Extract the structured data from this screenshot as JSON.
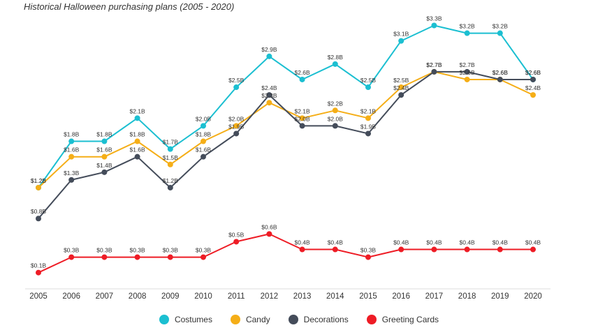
{
  "chart_data": {
    "type": "line",
    "title": "Historical Halloween purchasing plans (2005 - 2020)",
    "x": [
      "2005",
      "2006",
      "2007",
      "2008",
      "2009",
      "2010",
      "2011",
      "2012",
      "2013",
      "2014",
      "2015",
      "2016",
      "2017",
      "2018",
      "2019",
      "2020"
    ],
    "value_prefix": "$",
    "value_suffix": "B",
    "ylim": [
      0,
      3.4
    ],
    "grid": false,
    "legend_position": "bottom",
    "series": [
      {
        "name": "Costumes",
        "color": "#1bbfd1",
        "values": [
          1.2,
          1.8,
          1.8,
          2.1,
          1.7,
          2.0,
          2.5,
          2.9,
          2.6,
          2.8,
          2.5,
          3.1,
          3.3,
          3.2,
          3.2,
          2.6
        ]
      },
      {
        "name": "Candy",
        "color": "#f5ae17",
        "values": [
          1.2,
          1.6,
          1.6,
          1.8,
          1.5,
          1.8,
          2.0,
          2.3,
          2.1,
          2.2,
          2.1,
          2.5,
          2.7,
          2.6,
          2.6,
          2.4
        ]
      },
      {
        "name": "Decorations",
        "color": "#444c5a",
        "values": [
          0.8,
          1.3,
          1.4,
          1.6,
          1.2,
          1.6,
          1.9,
          2.4,
          2.0,
          2.0,
          1.9,
          2.4,
          2.7,
          2.7,
          2.6,
          2.6
        ]
      },
      {
        "name": "Greeting Cards",
        "color": "#ee1c25",
        "values": [
          0.1,
          0.3,
          0.3,
          0.3,
          0.3,
          0.3,
          0.5,
          0.6,
          0.4,
          0.4,
          0.3,
          0.4,
          0.4,
          0.4,
          0.4,
          0.4
        ]
      }
    ]
  }
}
